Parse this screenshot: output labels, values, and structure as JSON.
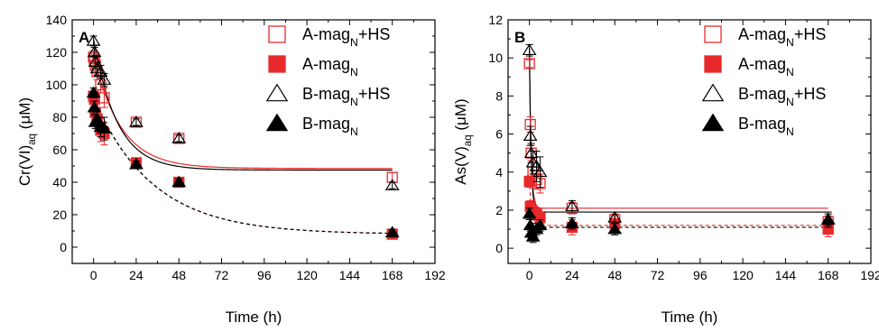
{
  "chart_data": [
    {
      "type": "scatter",
      "panel_label": "A",
      "xlabel": "Time (h)",
      "ylabel": {
        "main": "Cr(VI)",
        "sub": "aq",
        "tail": " (μM)"
      },
      "xlim": [
        -12,
        192
      ],
      "ylim": [
        -10,
        140
      ],
      "xticks": [
        0,
        24,
        48,
        72,
        96,
        120,
        144,
        168,
        192
      ],
      "yticks": [
        0,
        20,
        40,
        60,
        80,
        100,
        120,
        140
      ],
      "legend_position": "top-right",
      "series": [
        {
          "name": {
            "main": "A-mag",
            "sub": "N",
            "tail": "+HS"
          },
          "marker": "square-open",
          "color": "#e8292b",
          "x": [
            0,
            0.5,
            1,
            2,
            4,
            6,
            24,
            48,
            168
          ],
          "y": [
            117,
            115,
            112,
            108,
            100,
            92,
            77,
            67,
            43
          ],
          "err": [
            4,
            4,
            4,
            5,
            5,
            6,
            3,
            3,
            3
          ],
          "fit": {
            "style": "solid",
            "color": "#e8292b",
            "y0": 118,
            "yinf": 48.5,
            "k": 0.065
          }
        },
        {
          "name": {
            "main": "A-mag",
            "sub": "N",
            "tail": ""
          },
          "marker": "square-filled",
          "color": "#e8292b",
          "x": [
            0,
            0.5,
            1,
            2,
            4,
            6,
            24,
            48,
            168
          ],
          "y": [
            93,
            91,
            83,
            79,
            72,
            70,
            52,
            40,
            8
          ],
          "err": [
            3,
            4,
            5,
            6,
            7,
            7,
            2,
            2,
            2
          ],
          "fit": {
            "style": "dashed",
            "color": "#e8292b",
            "y0": 92,
            "yinf": 8,
            "k": 0.03
          }
        },
        {
          "name": {
            "main": "B-mag",
            "sub": "N",
            "tail": "+HS"
          },
          "marker": "triangle-open",
          "color": "#000000",
          "x": [
            0,
            0.5,
            1,
            2,
            4,
            6,
            24,
            48,
            168
          ],
          "y": [
            127,
            120,
            114,
            110,
            108,
            103,
            77,
            67,
            38
          ],
          "err": [
            3,
            3,
            4,
            4,
            4,
            4,
            2,
            2,
            2
          ],
          "fit": {
            "style": "solid",
            "color": "#000000",
            "y0": 128,
            "yinf": 47.5,
            "k": 0.075
          }
        },
        {
          "name": {
            "main": "B-mag",
            "sub": "N",
            "tail": ""
          },
          "marker": "triangle-filled",
          "color": "#000000",
          "x": [
            0,
            0.5,
            1,
            2,
            4,
            6,
            24,
            48,
            168
          ],
          "y": [
            95,
            86,
            77,
            79,
            74,
            73,
            51,
            40,
            9
          ],
          "err": [
            3,
            4,
            4,
            5,
            6,
            7,
            2,
            2,
            2
          ],
          "fit": {
            "style": "dashed",
            "color": "#000000",
            "y0": 92,
            "yinf": 8,
            "k": 0.03
          }
        }
      ]
    },
    {
      "type": "scatter",
      "panel_label": "B",
      "xlabel": "Time (h)",
      "ylabel": {
        "main": "As(V)",
        "sub": "aq",
        "tail": " (μM)"
      },
      "xlim": [
        -12,
        192
      ],
      "ylim": [
        -0.8,
        12
      ],
      "xticks": [
        0,
        24,
        48,
        72,
        96,
        120,
        144,
        168,
        192
      ],
      "yticks": [
        0,
        2,
        4,
        6,
        8,
        10,
        12
      ],
      "legend_position": "top-right",
      "series": [
        {
          "name": {
            "main": "A-mag",
            "sub": "N",
            "tail": "+HS"
          },
          "marker": "square-open",
          "color": "#e8292b",
          "x": [
            0,
            0.5,
            1,
            2,
            4,
            6,
            24,
            48,
            168
          ],
          "y": [
            9.7,
            6.5,
            5.0,
            4.0,
            3.6,
            3.4,
            2.1,
            1.5,
            1.4
          ],
          "err": [
            0.2,
            0.4,
            0.4,
            0.5,
            0.5,
            0.5,
            0.3,
            0.3,
            0.3
          ],
          "fit": {
            "style": "solid",
            "color": "#e8292b",
            "y0": 9.8,
            "yinf": 2.1,
            "k": 1.0
          }
        },
        {
          "name": {
            "main": "A-mag",
            "sub": "N",
            "tail": ""
          },
          "marker": "square-filled",
          "color": "#e8292b",
          "x": [
            0,
            0.5,
            1,
            2,
            4,
            6,
            24,
            48,
            168
          ],
          "y": [
            3.5,
            2.2,
            2.0,
            1.9,
            1.8,
            1.6,
            1.1,
            1.3,
            1.0
          ],
          "err": [
            0.3,
            0.3,
            0.3,
            0.3,
            0.3,
            0.3,
            0.4,
            0.4,
            0.4
          ],
          "fit": {
            "style": "dashed",
            "color": "#e8292b",
            "y0": 3.6,
            "yinf": 1.2,
            "k": 0.9
          }
        },
        {
          "name": {
            "main": "B-mag",
            "sub": "N",
            "tail": "+HS"
          },
          "marker": "triangle-open",
          "color": "#000000",
          "x": [
            0,
            0.5,
            1,
            2,
            4,
            6,
            24,
            48,
            168
          ],
          "y": [
            10.4,
            5.9,
            5.0,
            4.5,
            4.3,
            4.0,
            2.2,
            1.6,
            1.5
          ],
          "err": [
            0.3,
            0.5,
            0.5,
            0.6,
            0.8,
            0.8,
            0.3,
            0.3,
            0.4
          ],
          "fit": {
            "style": "solid",
            "color": "#000000",
            "y0": 10.5,
            "yinf": 1.9,
            "k": 1.1
          }
        },
        {
          "name": {
            "main": "B-mag",
            "sub": "N",
            "tail": ""
          },
          "marker": "triangle-filled",
          "color": "#000000",
          "x": [
            0,
            0.5,
            1,
            2,
            4,
            6,
            24,
            48,
            168
          ],
          "y": [
            1.8,
            1.2,
            0.8,
            0.6,
            1.0,
            1.2,
            1.3,
            1.0,
            1.5
          ],
          "err": [
            0.3,
            0.3,
            0.3,
            0.3,
            0.3,
            0.3,
            0.3,
            0.3,
            0.3
          ],
          "fit": {
            "style": "dashed",
            "color": "#000000",
            "y0": 1.6,
            "yinf": 1.1,
            "k": 0.8
          }
        }
      ]
    }
  ]
}
